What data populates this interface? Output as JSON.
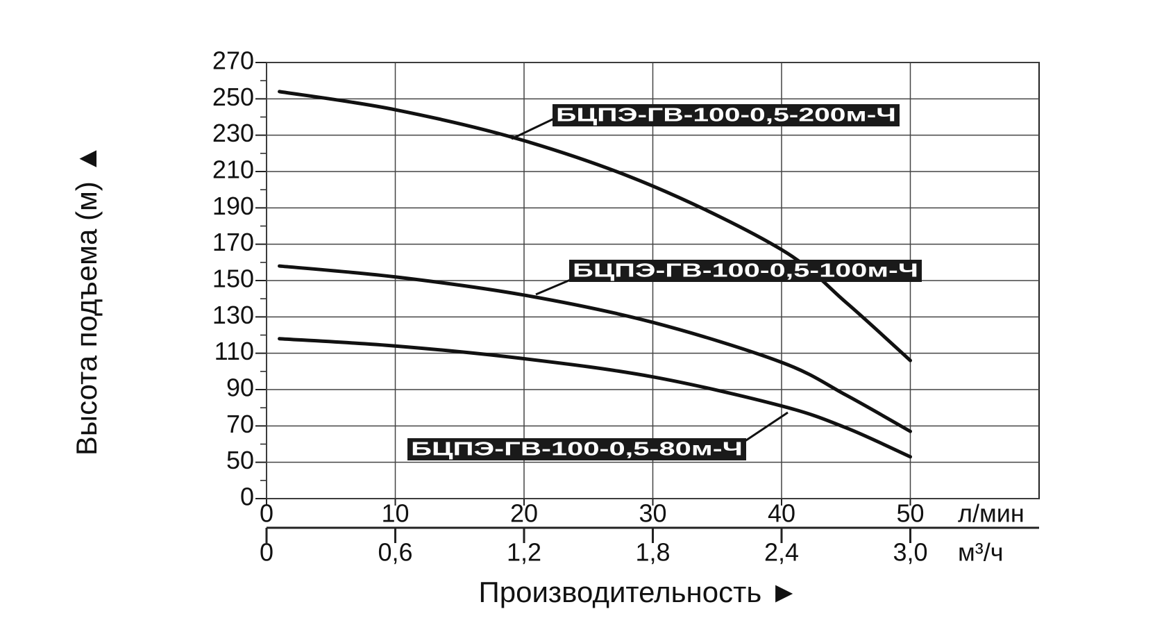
{
  "chart_data": {
    "type": "line",
    "ylabel": "Высота подъема (м) ▲",
    "xlabel": "Производительность ►",
    "x_unit": "л/мин",
    "x2_unit": "м³/ч",
    "x": [
      1,
      10,
      20,
      30,
      40,
      45,
      50
    ],
    "series": [
      {
        "name": "БЦПЭ-ГВ-100-0,5-200м-Ч",
        "color": "#111111",
        "values": [
          254,
          244,
          227,
          202,
          167,
          138,
          106
        ]
      },
      {
        "name": "БЦПЭ-ГВ-100-0,5-100м-Ч",
        "color": "#111111",
        "values": [
          158,
          152,
          142,
          127,
          105,
          87,
          67
        ]
      },
      {
        "name": "БЦПЭ-ГВ-100-0,5-80м-Ч",
        "color": "#111111",
        "values": [
          118,
          114,
          107,
          97,
          81,
          69,
          53
        ]
      }
    ],
    "xlim": [
      0,
      60
    ],
    "xticks": [
      0,
      10,
      20,
      30,
      40,
      50
    ],
    "x2lim": [
      0,
      3.6
    ],
    "x2ticks": [
      0,
      {
        "value": 0.6,
        "label": "0,6"
      },
      {
        "value": 1.2,
        "label": "1,2"
      },
      {
        "value": 1.8,
        "label": "1,8"
      },
      {
        "value": 2.4,
        "label": "2,4"
      },
      {
        "value": 3.0,
        "label": "3,0"
      }
    ],
    "ylim": [
      0,
      270
    ],
    "yticks": [
      0,
      50,
      70,
      90,
      110,
      130,
      150,
      170,
      190,
      210,
      230,
      250,
      270
    ],
    "grid": true
  }
}
